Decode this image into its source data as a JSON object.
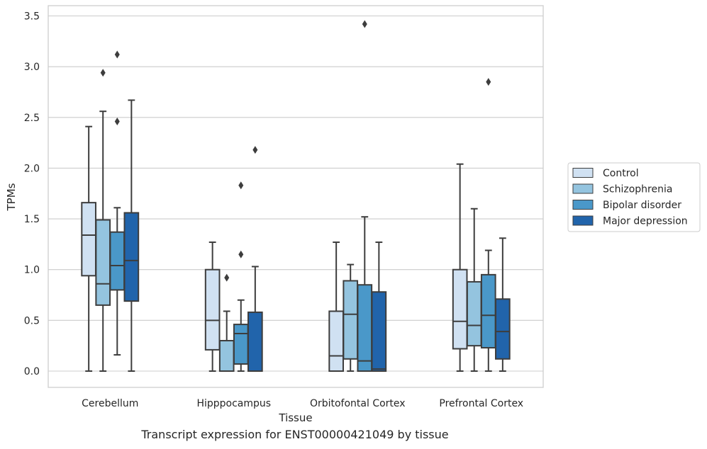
{
  "caption": "Transcript expression for ENST00000421049 by tissue",
  "chart_data": {
    "type": "box",
    "xlabel": "Tissue",
    "ylabel": "TPMs",
    "ylim": [
      -0.17,
      3.6
    ],
    "yticks": [
      0.0,
      0.5,
      1.0,
      1.5,
      2.0,
      2.5,
      3.0,
      3.5
    ],
    "ytick_labels": [
      "0.0",
      "0.5",
      "1.0",
      "1.5",
      "2.0",
      "2.5",
      "3.0",
      "3.5"
    ],
    "grid": "horizontal",
    "legend_position": "right",
    "categories": [
      "Cerebellum",
      "Hipppocampus",
      "Orbitofontal Cortex",
      "Prefrontal Cortex"
    ],
    "series": [
      {
        "name": "Control",
        "color": "#d0e1f2",
        "boxes": [
          {
            "whislo": 0.0,
            "q1": 0.94,
            "med": 1.34,
            "q3": 1.66,
            "whishi": 2.41,
            "fliers": []
          },
          {
            "whislo": 0.0,
            "q1": 0.21,
            "med": 0.5,
            "q3": 1.0,
            "whishi": 1.27,
            "fliers": []
          },
          {
            "whislo": 0.0,
            "q1": 0.0,
            "med": 0.15,
            "q3": 0.59,
            "whishi": 1.27,
            "fliers": []
          },
          {
            "whislo": 0.0,
            "q1": 0.22,
            "med": 0.49,
            "q3": 1.0,
            "whishi": 2.04,
            "fliers": []
          }
        ]
      },
      {
        "name": "Schizophrenia",
        "color": "#94c4df",
        "boxes": [
          {
            "whislo": 0.0,
            "q1": 0.65,
            "med": 0.86,
            "q3": 1.49,
            "whishi": 2.56,
            "fliers": [
              2.94
            ]
          },
          {
            "whislo": 0.0,
            "q1": 0.0,
            "med": 0.0,
            "q3": 0.3,
            "whishi": 0.59,
            "fliers": [
              0.92
            ]
          },
          {
            "whislo": 0.0,
            "q1": 0.12,
            "med": 0.56,
            "q3": 0.89,
            "whishi": 1.05,
            "fliers": []
          },
          {
            "whislo": 0.0,
            "q1": 0.25,
            "med": 0.45,
            "q3": 0.88,
            "whishi": 1.6,
            "fliers": []
          }
        ]
      },
      {
        "name": "Bipolar disorder",
        "color": "#4a98c9",
        "boxes": [
          {
            "whislo": 0.16,
            "q1": 0.8,
            "med": 1.04,
            "q3": 1.37,
            "whishi": 1.61,
            "fliers": [
              2.46,
              3.12
            ]
          },
          {
            "whislo": 0.0,
            "q1": 0.07,
            "med": 0.37,
            "q3": 0.46,
            "whishi": 0.7,
            "fliers": [
              1.15,
              1.83
            ]
          },
          {
            "whislo": 0.0,
            "q1": 0.0,
            "med": 0.1,
            "q3": 0.85,
            "whishi": 1.52,
            "fliers": [
              3.42
            ]
          },
          {
            "whislo": 0.0,
            "q1": 0.23,
            "med": 0.55,
            "q3": 0.95,
            "whishi": 1.19,
            "fliers": [
              2.85
            ]
          }
        ]
      },
      {
        "name": "Major depression",
        "color": "#2164ab",
        "boxes": [
          {
            "whislo": 0.0,
            "q1": 0.69,
            "med": 1.09,
            "q3": 1.56,
            "whishi": 2.67,
            "fliers": []
          },
          {
            "whislo": 0.0,
            "q1": 0.0,
            "med": 0.0,
            "q3": 0.58,
            "whishi": 1.03,
            "fliers": [
              2.18
            ]
          },
          {
            "whislo": 0.0,
            "q1": 0.0,
            "med": 0.02,
            "q3": 0.78,
            "whishi": 1.27,
            "fliers": []
          },
          {
            "whislo": 0.0,
            "q1": 0.12,
            "med": 0.39,
            "q3": 0.71,
            "whishi": 1.31,
            "fliers": []
          }
        ]
      }
    ]
  }
}
